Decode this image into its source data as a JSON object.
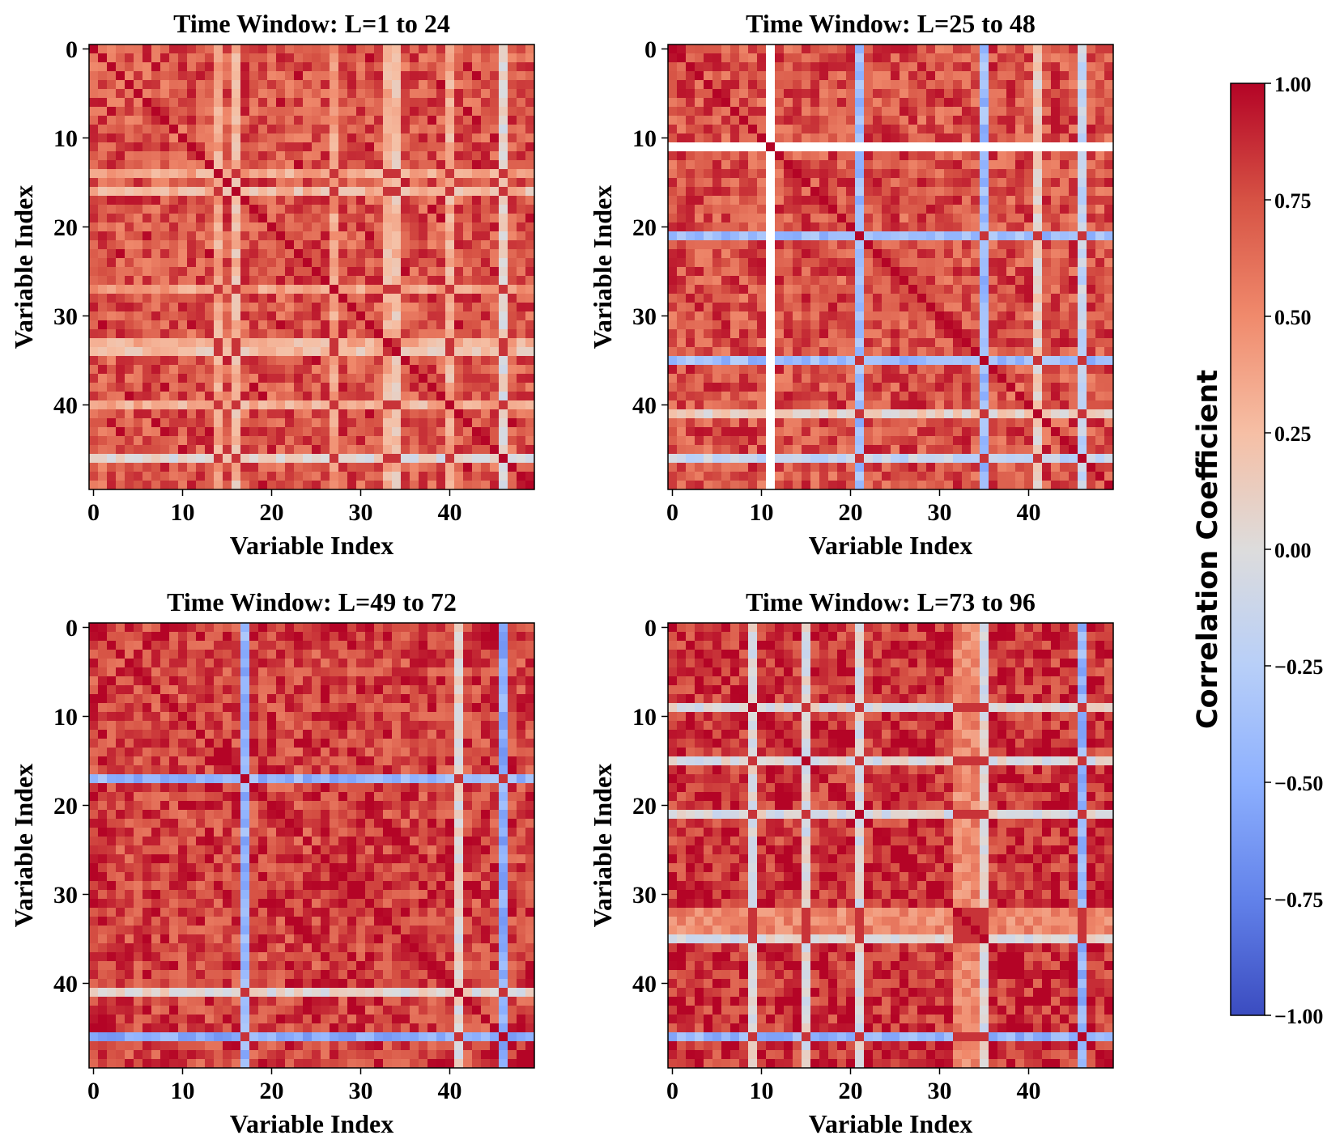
{
  "chart_data": {
    "type": "heatmap",
    "colormap": "coolwarm",
    "n_variables": 50,
    "vmin": -1.0,
    "vmax": 1.0,
    "x_ticks": [
      "0",
      "10",
      "20",
      "30",
      "40"
    ],
    "y_ticks": [
      "0",
      "10",
      "20",
      "30",
      "40"
    ],
    "panels": [
      {
        "title": "Time Window: L=1 to 24",
        "xlabel": "Variable Index",
        "ylabel": "Variable Index",
        "low_vars": [
          {
            "index": 46,
            "value": 0.05
          },
          {
            "index": 16,
            "value": 0.25
          },
          {
            "index": 34,
            "value": 0.22
          },
          {
            "index": 14,
            "value": 0.35
          },
          {
            "index": 40,
            "value": 0.3
          },
          {
            "index": 27,
            "value": 0.4
          },
          {
            "index": 33,
            "value": 0.3
          }
        ]
      },
      {
        "title": "Time Window: L=25 to 48",
        "xlabel": "Variable Index",
        "ylabel": "Variable Index",
        "low_vars": [
          {
            "index": 11,
            "value": 0.0,
            "blank": true
          },
          {
            "index": 21,
            "value": -0.4
          },
          {
            "index": 35,
            "value": -0.4
          },
          {
            "index": 46,
            "value": -0.15
          },
          {
            "index": 41,
            "value": 0.1
          }
        ]
      },
      {
        "title": "Time Window: L=49 to 72",
        "xlabel": "Variable Index",
        "ylabel": "Variable Index",
        "low_vars": [
          {
            "index": 17,
            "value": -0.45
          },
          {
            "index": 46,
            "value": -0.5
          },
          {
            "index": 41,
            "value": 0.05
          }
        ]
      },
      {
        "title": "Time Window: L=73 to 96",
        "xlabel": "Variable Index",
        "ylabel": "Variable Index",
        "low_vars": [
          {
            "index": 9,
            "value": 0.0
          },
          {
            "index": 15,
            "value": 0.0
          },
          {
            "index": 21,
            "value": 0.0
          },
          {
            "index": 35,
            "value": 0.0
          },
          {
            "index": 46,
            "value": -0.45
          },
          {
            "index": 32,
            "value": 0.5
          },
          {
            "index": 33,
            "value": 0.5
          },
          {
            "index": 34,
            "value": 0.5
          }
        ]
      }
    ],
    "colorbar": {
      "label": "Correlation Coefficient",
      "ticks": [
        "1.00",
        "0.75",
        "0.50",
        "0.25",
        "0.00",
        "−0.25",
        "−0.50",
        "−0.75",
        "−1.00"
      ]
    }
  }
}
